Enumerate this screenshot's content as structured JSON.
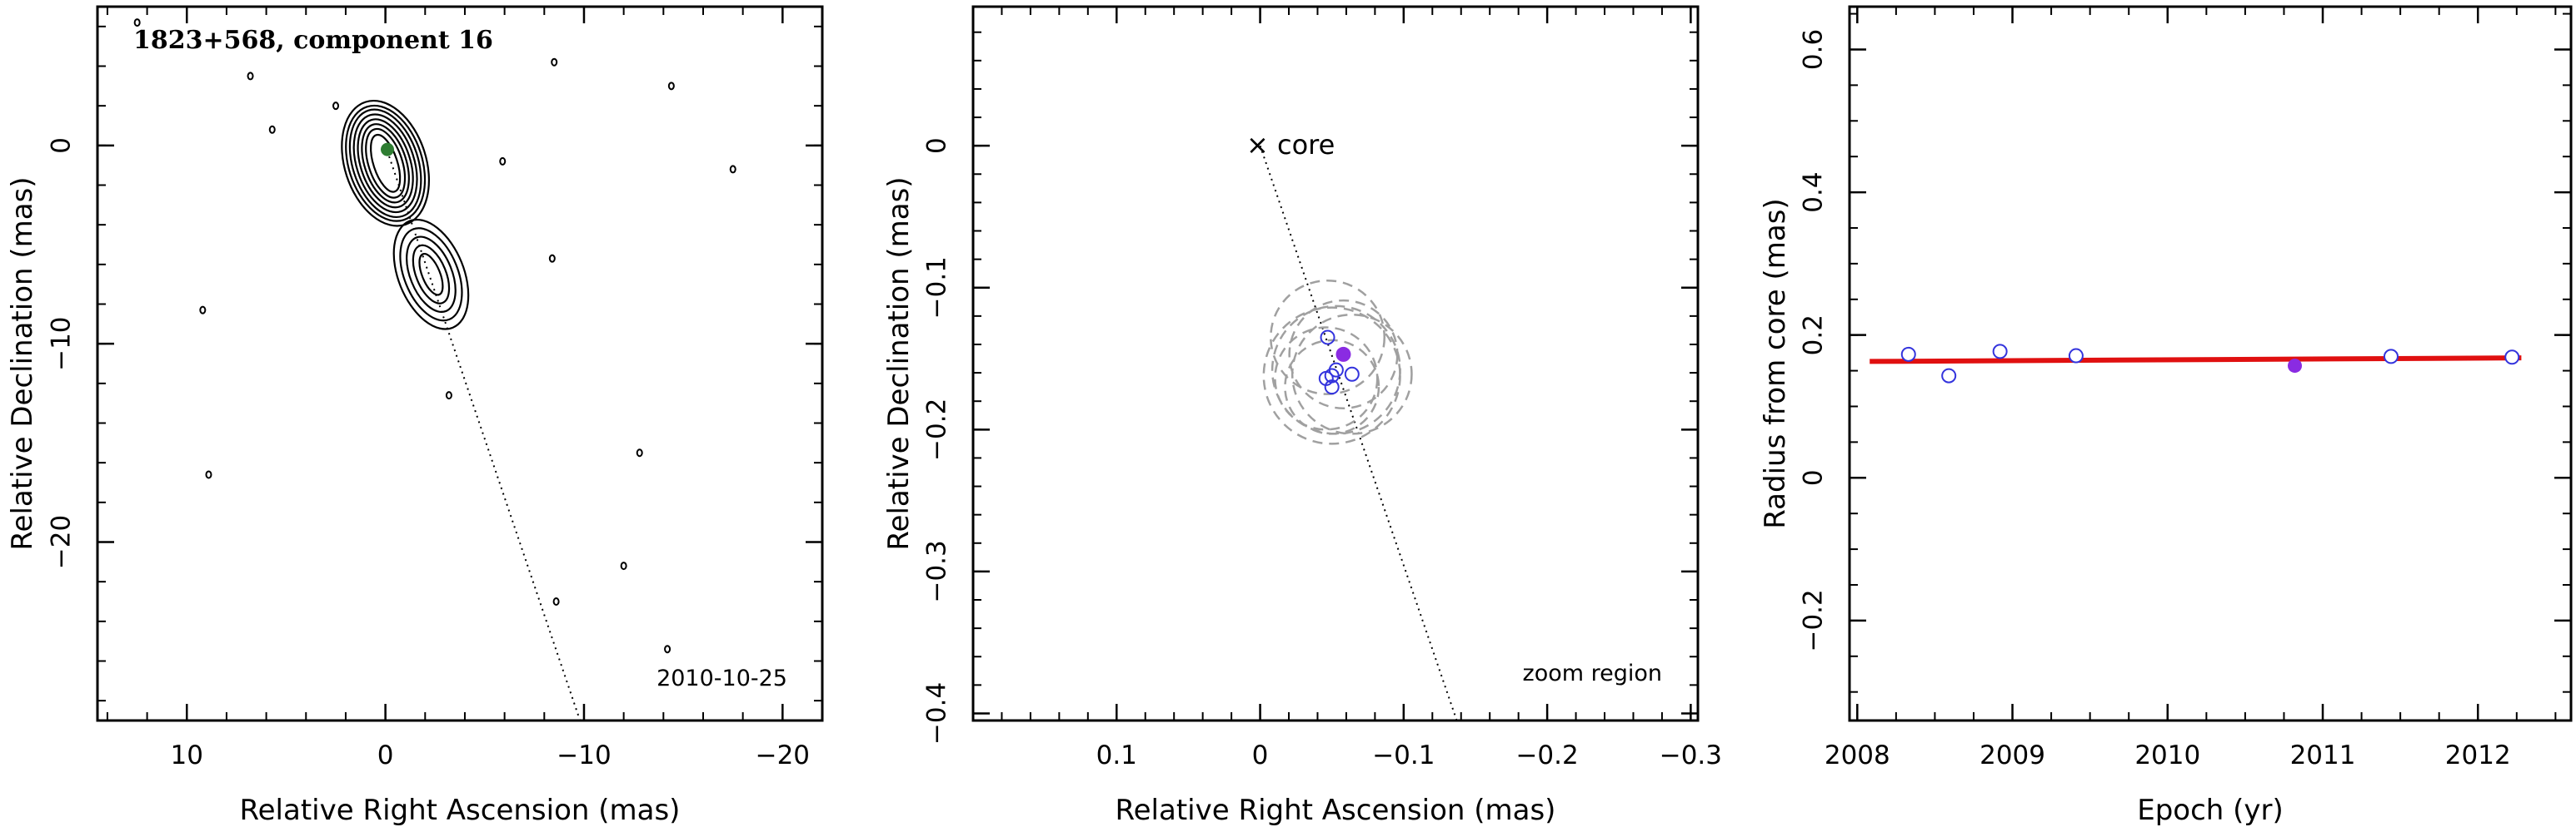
{
  "chart_data": [
    {
      "type": "contour",
      "title": "1823+568, component 16",
      "date_label": "2010-10-25",
      "xlabel": "Relative Right Ascension (mas)",
      "ylabel": "Relative Declination (mas)",
      "xlim": [
        14.5,
        -22
      ],
      "ylim": [
        -29,
        7
      ],
      "x_reversed": true,
      "xticks": [
        10,
        0,
        -10,
        -20
      ],
      "xtick_labels": [
        "10",
        "0",
        "−10",
        "−20"
      ],
      "yticks": [
        0,
        -10,
        -20
      ],
      "ytick_labels": [
        "0",
        "−10",
        "−20"
      ],
      "core_contours": {
        "center": [
          0,
          -0.9
        ],
        "radii": [
          [
            0.6,
            1.5
          ],
          [
            0.85,
            1.8
          ],
          [
            1.05,
            2.05
          ],
          [
            1.25,
            2.3
          ],
          [
            1.45,
            2.55
          ],
          [
            1.65,
            2.8
          ],
          [
            1.85,
            3.0
          ],
          [
            2.05,
            3.25
          ]
        ],
        "angle_deg": -18
      },
      "knot_contours": {
        "center": [
          -2.3,
          -6.5
        ],
        "radii": [
          [
            0.45,
            1.1
          ],
          [
            0.75,
            1.55
          ],
          [
            1.05,
            2.0
          ],
          [
            1.35,
            2.45
          ],
          [
            1.65,
            2.9
          ]
        ],
        "angle_deg": -22
      },
      "component_marker": {
        "x": -0.1,
        "y": -0.2,
        "color": "#2e7d32"
      },
      "trajectory_line": {
        "x": [
          0,
          -9.8
        ],
        "y": [
          0,
          -29
        ]
      },
      "noise_blobs": [
        {
          "x": 12.5,
          "y": 6.2
        },
        {
          "x": 6.8,
          "y": 3.5
        },
        {
          "x": 5.7,
          "y": 0.8
        },
        {
          "x": 2.5,
          "y": 2.0
        },
        {
          "x": -8.5,
          "y": 4.2
        },
        {
          "x": -14.4,
          "y": 3.0
        },
        {
          "x": -5.9,
          "y": -0.8
        },
        {
          "x": -17.5,
          "y": -1.2
        },
        {
          "x": -8.4,
          "y": -5.7
        },
        {
          "x": 9.2,
          "y": -8.3
        },
        {
          "x": -3.2,
          "y": -12.6
        },
        {
          "x": -12.8,
          "y": -15.5
        },
        {
          "x": 8.9,
          "y": -16.6
        },
        {
          "x": -12.0,
          "y": -21.2
        },
        {
          "x": -8.6,
          "y": -23.0
        },
        {
          "x": -14.2,
          "y": -25.4
        }
      ]
    },
    {
      "type": "scatter",
      "title": "",
      "xlabel": "Relative Right Ascension (mas)",
      "ylabel": "Relative Declination (mas)",
      "xlim": [
        0.2,
        -0.305
      ],
      "ylim": [
        -0.405,
        0.098
      ],
      "x_reversed": true,
      "xticks": [
        0.1,
        0,
        -0.1,
        -0.2,
        -0.3
      ],
      "xtick_labels": [
        "0.1",
        "0",
        "−0.1",
        "−0.2",
        "−0.3"
      ],
      "yticks": [
        0,
        -0.1,
        -0.2,
        -0.3,
        -0.4
      ],
      "ytick_labels": [
        "0",
        "−0.1",
        "−0.2",
        "−0.3",
        "−0.4"
      ],
      "core_label": "× core",
      "zoom_label": "zoom region",
      "trajectory_line": {
        "x": [
          0,
          -0.137
        ],
        "y": [
          0,
          -0.405
        ]
      },
      "open_points": [
        {
          "x": -0.047,
          "y": -0.135
        },
        {
          "x": -0.053,
          "y": -0.158
        },
        {
          "x": -0.064,
          "y": -0.161
        },
        {
          "x": -0.046,
          "y": -0.164
        },
        {
          "x": -0.05,
          "y": -0.162
        },
        {
          "x": -0.05,
          "y": -0.17
        }
      ],
      "filled_point": {
        "x": -0.058,
        "y": -0.147
      },
      "error_circles": [
        {
          "x": -0.058,
          "y": -0.147,
          "r": 0.038
        },
        {
          "x": -0.047,
          "y": -0.135,
          "r": 0.04
        },
        {
          "x": -0.053,
          "y": -0.158,
          "r": 0.045
        },
        {
          "x": -0.064,
          "y": -0.161,
          "r": 0.042
        },
        {
          "x": -0.046,
          "y": -0.164,
          "r": 0.036
        },
        {
          "x": -0.05,
          "y": -0.17,
          "r": 0.033
        },
        {
          "x": -0.05,
          "y": -0.162,
          "r": 0.048
        }
      ],
      "colors": {
        "open": "#3333dd",
        "filled": "#8a2be2",
        "circles": "#a0a0a0"
      }
    },
    {
      "type": "scatter",
      "title": "",
      "xlabel": "Epoch (yr)",
      "ylabel": "Radius from core (mas)",
      "xlim": [
        2007.95,
        2012.6
      ],
      "ylim": [
        -0.34,
        0.66
      ],
      "xticks": [
        2008,
        2009,
        2010,
        2011,
        2012
      ],
      "xtick_labels": [
        "2008",
        "2009",
        "2010",
        "2011",
        "2012"
      ],
      "yticks": [
        -0.2,
        0,
        0.2,
        0.4,
        0.6
      ],
      "ytick_labels": [
        "−0.2",
        "0",
        "0.2",
        "0.4",
        "0.6"
      ],
      "open_points": [
        {
          "x": 2008.33,
          "y": 0.173
        },
        {
          "x": 2008.59,
          "y": 0.143
        },
        {
          "x": 2008.92,
          "y": 0.177
        },
        {
          "x": 2009.41,
          "y": 0.171
        },
        {
          "x": 2011.44,
          "y": 0.17
        },
        {
          "x": 2012.22,
          "y": 0.169
        }
      ],
      "filled_point": {
        "x": 2010.82,
        "y": 0.157
      },
      "fit_line": {
        "x": [
          2008.08,
          2012.28
        ],
        "y": [
          0.163,
          0.168
        ]
      },
      "colors": {
        "open": "#3333dd",
        "filled": "#8a2be2",
        "fit": "#e01010"
      }
    }
  ]
}
